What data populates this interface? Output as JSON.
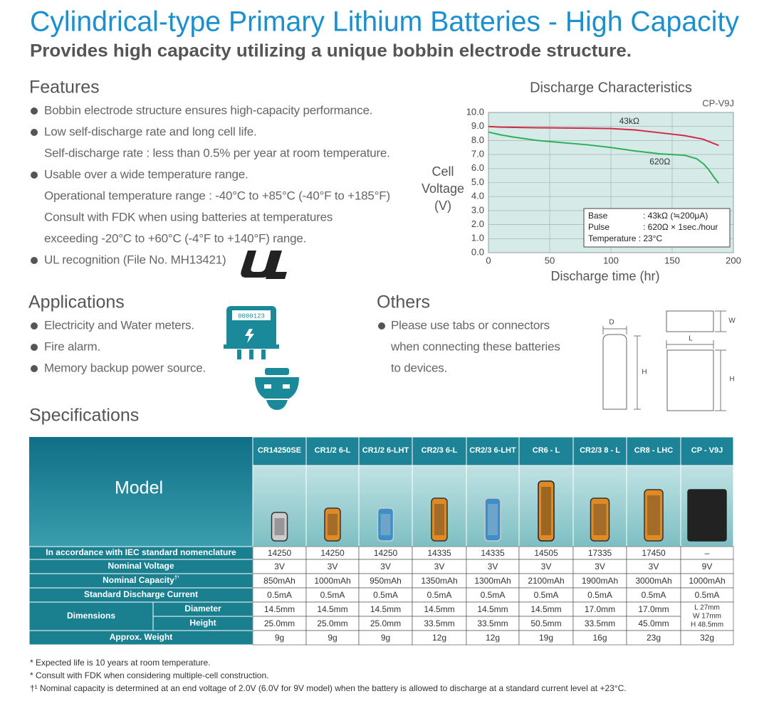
{
  "header": {
    "title": "Cylindrical-type Primary Lithium Batteries - High Capacity",
    "subtitle": "Provides high capacity utilizing a unique bobbin electrode structure."
  },
  "features": {
    "heading": "Features",
    "items": [
      {
        "lines": [
          "Bobbin electrode structure ensures high-capacity performance."
        ]
      },
      {
        "lines": [
          "Low self-discharge rate and long cell life.",
          "Self-discharge rate : less than 0.5% per year at room temperature."
        ]
      },
      {
        "lines": [
          "Usable over a wide temperature range.",
          "Operational temperature range : -40°C to +85°C (-40°F to +185°F)",
          "Consult with FDK when using batteries at temperatures",
          "exceeding -20°C to +60°C (-4°F to +140°F) range."
        ]
      },
      {
        "lines": [
          "UL recognition (File No. MH13421)"
        ]
      }
    ]
  },
  "chart_data": {
    "type": "line",
    "title": "Discharge Characteristics",
    "model": "CP-V9J",
    "y_label": [
      "Cell",
      "Voltage",
      "(V)"
    ],
    "x_label": "Discharge time (hr)",
    "xlim": [
      0,
      200
    ],
    "xticks": [
      0,
      50,
      100,
      150,
      200
    ],
    "ylim": [
      0,
      10
    ],
    "yticks": [
      {
        "value": 0,
        "label": "0.0"
      },
      {
        "value": 1,
        "label": "1.0"
      },
      {
        "value": 2,
        "label": "2.0"
      },
      {
        "value": 3,
        "label": "3.0"
      },
      {
        "value": 4,
        "label": "4.0"
      },
      {
        "value": 5,
        "label": "5.0"
      },
      {
        "value": 6,
        "label": "6.0"
      },
      {
        "value": 7,
        "label": "7.0"
      },
      {
        "value": 8,
        "label": "8.0"
      },
      {
        "value": 9,
        "label": "9.0"
      },
      {
        "value": 10,
        "label": "10.0"
      }
    ],
    "grid": true,
    "series": [
      {
        "name": "43kΩ",
        "color": "#d42a45",
        "x": [
          0,
          10,
          30,
          50,
          80,
          100,
          120,
          140,
          160,
          175,
          188
        ],
        "values": [
          9.0,
          8.95,
          8.92,
          8.9,
          8.88,
          8.85,
          8.75,
          8.55,
          8.35,
          8.1,
          7.65
        ]
      },
      {
        "name": "620Ω",
        "color": "#2fae5b",
        "x": [
          0,
          10,
          20,
          40,
          60,
          80,
          100,
          120,
          140,
          160,
          170,
          176,
          180,
          184,
          188
        ],
        "values": [
          8.6,
          8.4,
          8.25,
          8.0,
          7.85,
          7.7,
          7.5,
          7.25,
          7.05,
          6.95,
          6.7,
          6.3,
          5.9,
          5.4,
          4.95
        ]
      }
    ],
    "annotation": [
      [
        "Base",
        ": 43kΩ (≒200μA)"
      ],
      [
        "Pulse",
        ": 620Ω × 1sec./hour"
      ],
      [
        "Temperature : 23°C"
      ]
    ]
  },
  "applications": {
    "heading": "Applications",
    "items": [
      "Electricity and Water meters.",
      "Fire alarm.",
      "Memory backup power source."
    ],
    "icon_display": "0000123"
  },
  "others": {
    "heading": "Others",
    "lines": [
      "Please use tabs or connectors",
      "when connecting these batteries",
      "to devices."
    ],
    "diagram_labels": {
      "d": "D",
      "h1": "H",
      "w": "W",
      "l": "L",
      "h2": "H"
    }
  },
  "specifications": {
    "heading": "Specifications"
  },
  "table": {
    "model_header": "Model",
    "models": [
      "CR14250SE",
      "CR1/2 6-L",
      "CR1/2 6-LHT",
      "CR2/3 6-L",
      "CR2/3 6-LHT",
      "CR6 - L",
      "CR2/3 8 - L",
      "CR8 - LHC",
      "CP - V9J"
    ],
    "rows_before": [
      {
        "label": "In accordance with IEC standard nomenclature",
        "values": [
          "14250",
          "14250",
          "14250",
          "14335",
          "14335",
          "14505",
          "17335",
          "17450",
          "–"
        ]
      },
      {
        "label": "Nominal Voltage",
        "values": [
          "3V",
          "3V",
          "3V",
          "3V",
          "3V",
          "3V",
          "3V",
          "3V",
          "9V"
        ]
      },
      {
        "label": "Nominal Capacity",
        "mark": "†¹",
        "values": [
          "850mAh",
          "1000mAh",
          "950mAh",
          "1350mAh",
          "1300mAh",
          "2100mAh",
          "1900mAh",
          "3000mAh",
          "1000mAh"
        ]
      },
      {
        "label": "Standard Discharge Current",
        "values": [
          "0.5mA",
          "0.5mA",
          "0.5mA",
          "0.5mA",
          "0.5mA",
          "0.5mA",
          "0.5mA",
          "0.5mA",
          "0.5mA"
        ]
      }
    ],
    "dimensions": {
      "label": "Dimensions",
      "rows": [
        {
          "label": "Diameter",
          "values": [
            "14.5mm",
            "14.5mm",
            "14.5mm",
            "14.5mm",
            "14.5mm",
            "14.5mm",
            "17.0mm",
            "17.0mm"
          ]
        },
        {
          "label": "Height",
          "values": [
            "25.0mm",
            "25.0mm",
            "25.0mm",
            "33.5mm",
            "33.5mm",
            "50.5mm",
            "33.5mm",
            "45.0mm"
          ]
        }
      ],
      "merged": [
        "L 27mm",
        "W 17mm",
        "H 48.5mm"
      ]
    },
    "rows_after": [
      {
        "label": "Approx. Weight",
        "values": [
          "9g",
          "9g",
          "9g",
          "12g",
          "12g",
          "19g",
          "16g",
          "23g",
          "32g"
        ]
      }
    ]
  },
  "footnotes": [
    "* Expected life is 10 years at room temperature.",
    "* Consult with FDK when considering multiple-cell construction.",
    "†¹ Nominal capacity is determined at an end voltage of 2.0V (6.0V for 9V model) when the battery is allowed to discharge at a standard current level at +23°C."
  ]
}
